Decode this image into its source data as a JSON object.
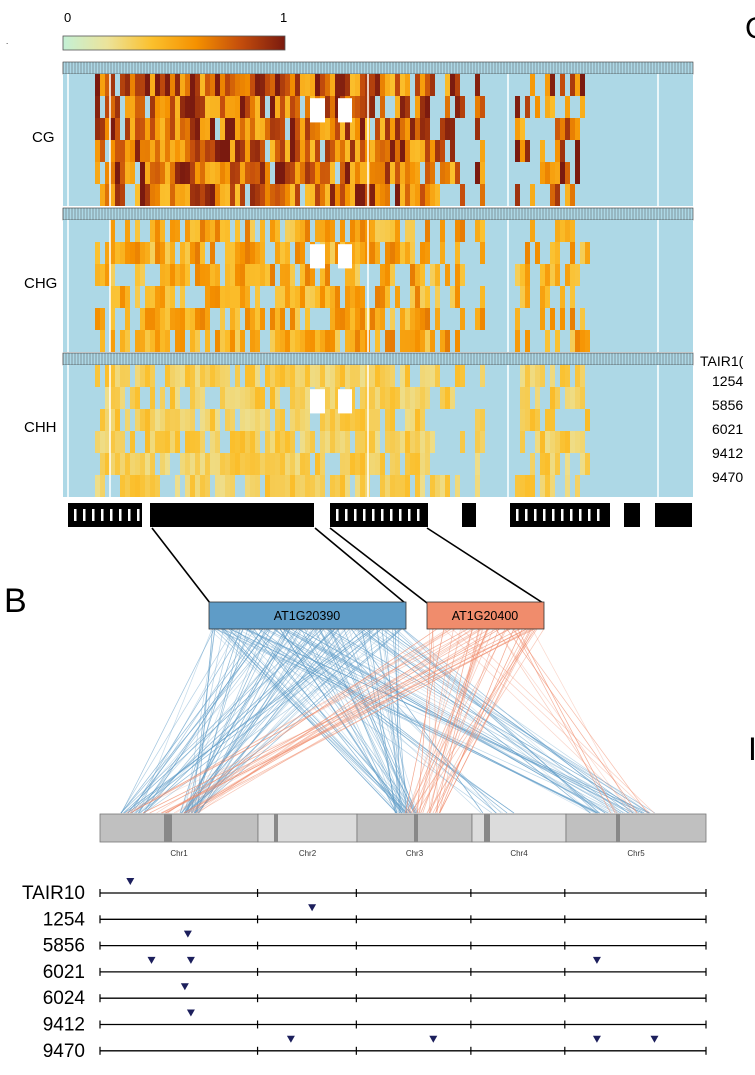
{
  "colorbar": {
    "min_label": "0",
    "max_label": "1",
    "stops": [
      "#c4f1d6",
      "#ece39a",
      "#fbc02d",
      "#f59100",
      "#c44d0c",
      "#7a1a0f"
    ]
  },
  "colors": {
    "background_cell": "#add8e6",
    "missing_cell": "#ffffff",
    "gene_block": "#000000",
    "gene_1": "#5f9cc7",
    "gene_2": "#f08c6c",
    "chromosome": "#c0c0c0",
    "chromosome_alt": "#dcdcdc",
    "marker": "#1c1f5c"
  },
  "heatmaps": [
    {
      "label": "CG",
      "intensity": 1.0
    },
    {
      "label": "CHG",
      "intensity": 0.55
    },
    {
      "label": "CHH",
      "intensity": 0.3
    }
  ],
  "accessions": [
    "TAIR10",
    "1254",
    "5856",
    "6021",
    "9412",
    "9470"
  ],
  "accession_label_top": "TAIR1(",
  "panel_b_letter": "B",
  "edge_letter_c": "C",
  "edge_letter_d": "I",
  "genes": [
    {
      "id": "AT1G20390",
      "color": "#5f9cc7"
    },
    {
      "id": "AT1G20400",
      "color": "#f08c6c"
    }
  ],
  "chromosomes": [
    "Chr1",
    "Chr2",
    "Chr3",
    "Chr4",
    "Chr5"
  ],
  "tracks": [
    {
      "name": "TAIR10",
      "markers": [
        0.05
      ]
    },
    {
      "name": "1254",
      "markers": [
        0.35
      ]
    },
    {
      "name": "5856",
      "markers": [
        0.145
      ]
    },
    {
      "name": "6021",
      "markers": [
        0.085,
        0.15,
        0.82
      ]
    },
    {
      "name": "6024",
      "markers": [
        0.14
      ]
    },
    {
      "name": "9412",
      "markers": [
        0.15
      ]
    },
    {
      "name": "9470",
      "markers": [
        0.315,
        0.55,
        0.82,
        0.915
      ]
    }
  ]
}
